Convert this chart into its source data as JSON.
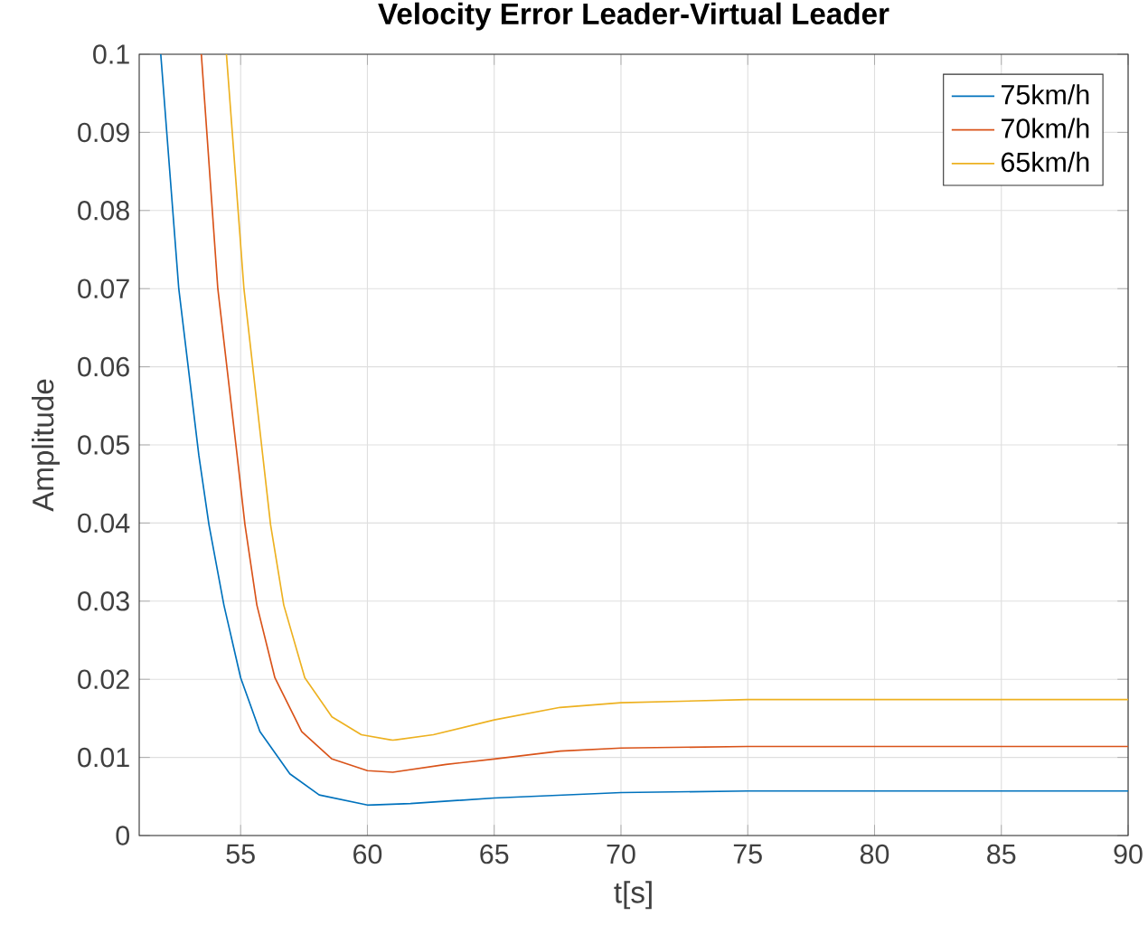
{
  "chart_data": {
    "type": "line",
    "title": "Velocity Error Leader-Virtual Leader",
    "xlabel": "t[s]",
    "ylabel": "Amplitude",
    "xlim": [
      51,
      90
    ],
    "xticks": [
      55,
      60,
      65,
      70,
      75,
      80,
      85,
      90
    ],
    "ylim": [
      0,
      0.1
    ],
    "yticks": [
      0,
      0.01,
      0.02,
      0.03,
      0.04,
      0.05,
      0.06,
      0.07,
      0.08,
      0.09,
      0.1
    ],
    "grid": true,
    "legend": "top right",
    "line_style": "solid",
    "marker": "none",
    "series": [
      {
        "name": "75km/h",
        "color": "#0072bd",
        "x": [
          51.85,
          52.56,
          53.35,
          53.75,
          54.34,
          55,
          55.76,
          56.94,
          58.1,
          60,
          61.7,
          65,
          70,
          75,
          80,
          90
        ],
        "values": [
          0.1,
          0.07,
          0.0487,
          0.0398,
          0.0295,
          0.0202,
          0.0133,
          0.0079,
          0.0052,
          0.0039,
          0.0041,
          0.0048,
          0.0055,
          0.0057,
          0.0057,
          0.0057
        ]
      },
      {
        "name": "70km/h",
        "color": "#d95319",
        "x": [
          53.45,
          54.1,
          54.86,
          55.17,
          55.64,
          56.35,
          57.41,
          58.6,
          60,
          61,
          63.1,
          65,
          67.6,
          70,
          75,
          80,
          90
        ],
        "values": [
          0.1,
          0.07,
          0.0487,
          0.0398,
          0.0295,
          0.0202,
          0.0133,
          0.0098,
          0.0083,
          0.0081,
          0.0091,
          0.0098,
          0.0108,
          0.0112,
          0.0114,
          0.0114,
          0.0114
        ]
      },
      {
        "name": "65km/h",
        "color": "#edb120",
        "x": [
          54.44,
          55.13,
          55.87,
          56.18,
          56.7,
          57.53,
          58.6,
          59.76,
          61,
          62.6,
          65,
          67.6,
          70,
          75,
          80,
          90
        ],
        "values": [
          0.1,
          0.07,
          0.0487,
          0.0398,
          0.0295,
          0.0202,
          0.0152,
          0.0129,
          0.0122,
          0.0129,
          0.0148,
          0.0164,
          0.017,
          0.0174,
          0.0174,
          0.0174
        ]
      }
    ]
  }
}
